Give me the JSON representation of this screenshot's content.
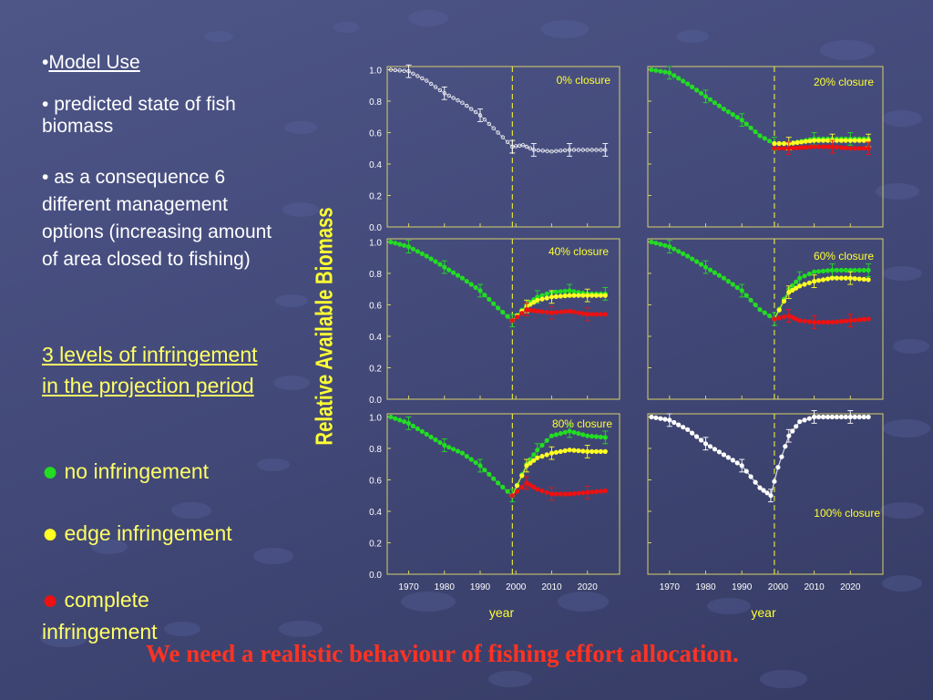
{
  "slide": {
    "heading": "Model Use",
    "bullet_1": "predicted state of fish biomass",
    "bullet_2": "as a consequence 6 different management options (increasing amount of area closed to fishing)",
    "levels_title": "3 levels of  infringement in the projection period",
    "legend_no": "no infringement",
    "legend_edge": "edge infringement",
    "legend_complete": "complete infringement",
    "footer": "We need a realistic behaviour of fishing effort allocation.",
    "colors": {
      "green": "#22dd22",
      "yellow": "#ffff22",
      "red": "#ee1111",
      "white": "#ffffff",
      "frame": "#d8d06a",
      "text_yellow": "#ffff66",
      "footer_red": "#ff3322"
    }
  },
  "chart_data": {
    "type": "line",
    "ylabel": "Relative Available Biomass",
    "xlabel": "year",
    "y_ticks": [
      "0.0",
      "0.2",
      "0.4",
      "0.6",
      "0.8",
      "1.0"
    ],
    "x_ticks": [
      "1970",
      "1980",
      "1990",
      "2000",
      "2010",
      "2020"
    ],
    "xlim": [
      1964,
      2029
    ],
    "ylim": [
      0,
      1.02
    ],
    "projection_start": 1999,
    "panels": [
      {
        "title": "0% closure",
        "series": [
          {
            "color": "white",
            "style": "open",
            "values": [
              [
                1965,
                1.0
              ],
              [
                1970,
                0.99
              ],
              [
                1975,
                0.93
              ],
              [
                1980,
                0.85
              ],
              [
                1985,
                0.79
              ],
              [
                1990,
                0.71
              ],
              [
                1995,
                0.6
              ],
              [
                1999,
                0.51
              ],
              [
                2002,
                0.52
              ],
              [
                2005,
                0.49
              ],
              [
                2010,
                0.48
              ],
              [
                2015,
                0.49
              ],
              [
                2020,
                0.49
              ],
              [
                2025,
                0.49
              ]
            ]
          }
        ]
      },
      {
        "title": "20% closure",
        "series": [
          {
            "color": "green",
            "values": [
              [
                1965,
                1.0
              ],
              [
                1970,
                0.98
              ],
              [
                1975,
                0.91
              ],
              [
                1980,
                0.83
              ],
              [
                1985,
                0.75
              ],
              [
                1990,
                0.68
              ],
              [
                1995,
                0.58
              ],
              [
                1999,
                0.53
              ],
              [
                2003,
                0.53
              ],
              [
                2010,
                0.56
              ],
              [
                2015,
                0.56
              ],
              [
                2020,
                0.56
              ],
              [
                2025,
                0.56
              ]
            ]
          },
          {
            "color": "yellow",
            "values": [
              [
                1999,
                0.53
              ],
              [
                2003,
                0.53
              ],
              [
                2010,
                0.55
              ],
              [
                2015,
                0.55
              ],
              [
                2020,
                0.55
              ],
              [
                2025,
                0.55
              ]
            ]
          },
          {
            "color": "red",
            "values": [
              [
                1999,
                0.5
              ],
              [
                2003,
                0.5
              ],
              [
                2010,
                0.51
              ],
              [
                2015,
                0.51
              ],
              [
                2020,
                0.5
              ],
              [
                2025,
                0.5
              ]
            ]
          }
        ]
      },
      {
        "title": "40% closure",
        "series": [
          {
            "color": "green",
            "values": [
              [
                1965,
                1.0
              ],
              [
                1970,
                0.97
              ],
              [
                1975,
                0.91
              ],
              [
                1980,
                0.84
              ],
              [
                1985,
                0.77
              ],
              [
                1990,
                0.69
              ],
              [
                1995,
                0.58
              ],
              [
                1999,
                0.5
              ],
              [
                2003,
                0.6
              ],
              [
                2006,
                0.65
              ],
              [
                2010,
                0.68
              ],
              [
                2015,
                0.69
              ],
              [
                2020,
                0.67
              ],
              [
                2025,
                0.67
              ]
            ]
          },
          {
            "color": "yellow",
            "values": [
              [
                1999,
                0.5
              ],
              [
                2003,
                0.59
              ],
              [
                2006,
                0.63
              ],
              [
                2010,
                0.65
              ],
              [
                2015,
                0.66
              ],
              [
                2020,
                0.66
              ],
              [
                2025,
                0.66
              ]
            ]
          },
          {
            "color": "red",
            "values": [
              [
                1999,
                0.5
              ],
              [
                2003,
                0.57
              ],
              [
                2006,
                0.56
              ],
              [
                2010,
                0.55
              ],
              [
                2015,
                0.56
              ],
              [
                2020,
                0.54
              ],
              [
                2025,
                0.54
              ]
            ]
          }
        ]
      },
      {
        "title": "60% closure",
        "series": [
          {
            "color": "green",
            "values": [
              [
                1965,
                1.0
              ],
              [
                1970,
                0.97
              ],
              [
                1975,
                0.91
              ],
              [
                1980,
                0.84
              ],
              [
                1985,
                0.77
              ],
              [
                1990,
                0.69
              ],
              [
                1995,
                0.57
              ],
              [
                1999,
                0.51
              ],
              [
                2003,
                0.7
              ],
              [
                2006,
                0.77
              ],
              [
                2010,
                0.81
              ],
              [
                2015,
                0.82
              ],
              [
                2020,
                0.82
              ],
              [
                2025,
                0.82
              ]
            ]
          },
          {
            "color": "yellow",
            "values": [
              [
                1999,
                0.51
              ],
              [
                2003,
                0.68
              ],
              [
                2006,
                0.72
              ],
              [
                2010,
                0.75
              ],
              [
                2015,
                0.77
              ],
              [
                2020,
                0.77
              ],
              [
                2025,
                0.76
              ]
            ]
          },
          {
            "color": "red",
            "values": [
              [
                1999,
                0.51
              ],
              [
                2003,
                0.53
              ],
              [
                2006,
                0.5
              ],
              [
                2010,
                0.49
              ],
              [
                2015,
                0.49
              ],
              [
                2020,
                0.5
              ],
              [
                2025,
                0.51
              ]
            ]
          }
        ]
      },
      {
        "title": "80% closure",
        "series": [
          {
            "color": "green",
            "values": [
              [
                1965,
                1.0
              ],
              [
                1970,
                0.96
              ],
              [
                1975,
                0.89
              ],
              [
                1980,
                0.82
              ],
              [
                1985,
                0.77
              ],
              [
                1990,
                0.69
              ],
              [
                1995,
                0.58
              ],
              [
                1999,
                0.5
              ],
              [
                2003,
                0.7
              ],
              [
                2006,
                0.79
              ],
              [
                2010,
                0.88
              ],
              [
                2015,
                0.91
              ],
              [
                2020,
                0.88
              ],
              [
                2025,
                0.87
              ]
            ]
          },
          {
            "color": "yellow",
            "values": [
              [
                1999,
                0.5
              ],
              [
                2003,
                0.69
              ],
              [
                2006,
                0.74
              ],
              [
                2010,
                0.77
              ],
              [
                2015,
                0.79
              ],
              [
                2020,
                0.78
              ],
              [
                2025,
                0.78
              ]
            ]
          },
          {
            "color": "red",
            "values": [
              [
                1999,
                0.5
              ],
              [
                2003,
                0.58
              ],
              [
                2006,
                0.54
              ],
              [
                2010,
                0.51
              ],
              [
                2015,
                0.51
              ],
              [
                2020,
                0.52
              ],
              [
                2025,
                0.53
              ]
            ]
          }
        ]
      },
      {
        "title": "100% closure",
        "series": [
          {
            "color": "white",
            "values": [
              [
                1965,
                1.0
              ],
              [
                1970,
                0.98
              ],
              [
                1975,
                0.92
              ],
              [
                1980,
                0.83
              ],
              [
                1985,
                0.76
              ],
              [
                1990,
                0.69
              ],
              [
                1995,
                0.55
              ],
              [
                1998,
                0.5
              ],
              [
                2000,
                0.68
              ],
              [
                2003,
                0.88
              ],
              [
                2006,
                0.97
              ],
              [
                2010,
                1.0
              ],
              [
                2015,
                1.0
              ],
              [
                2020,
                1.0
              ],
              [
                2025,
                1.0
              ]
            ]
          }
        ]
      }
    ]
  }
}
